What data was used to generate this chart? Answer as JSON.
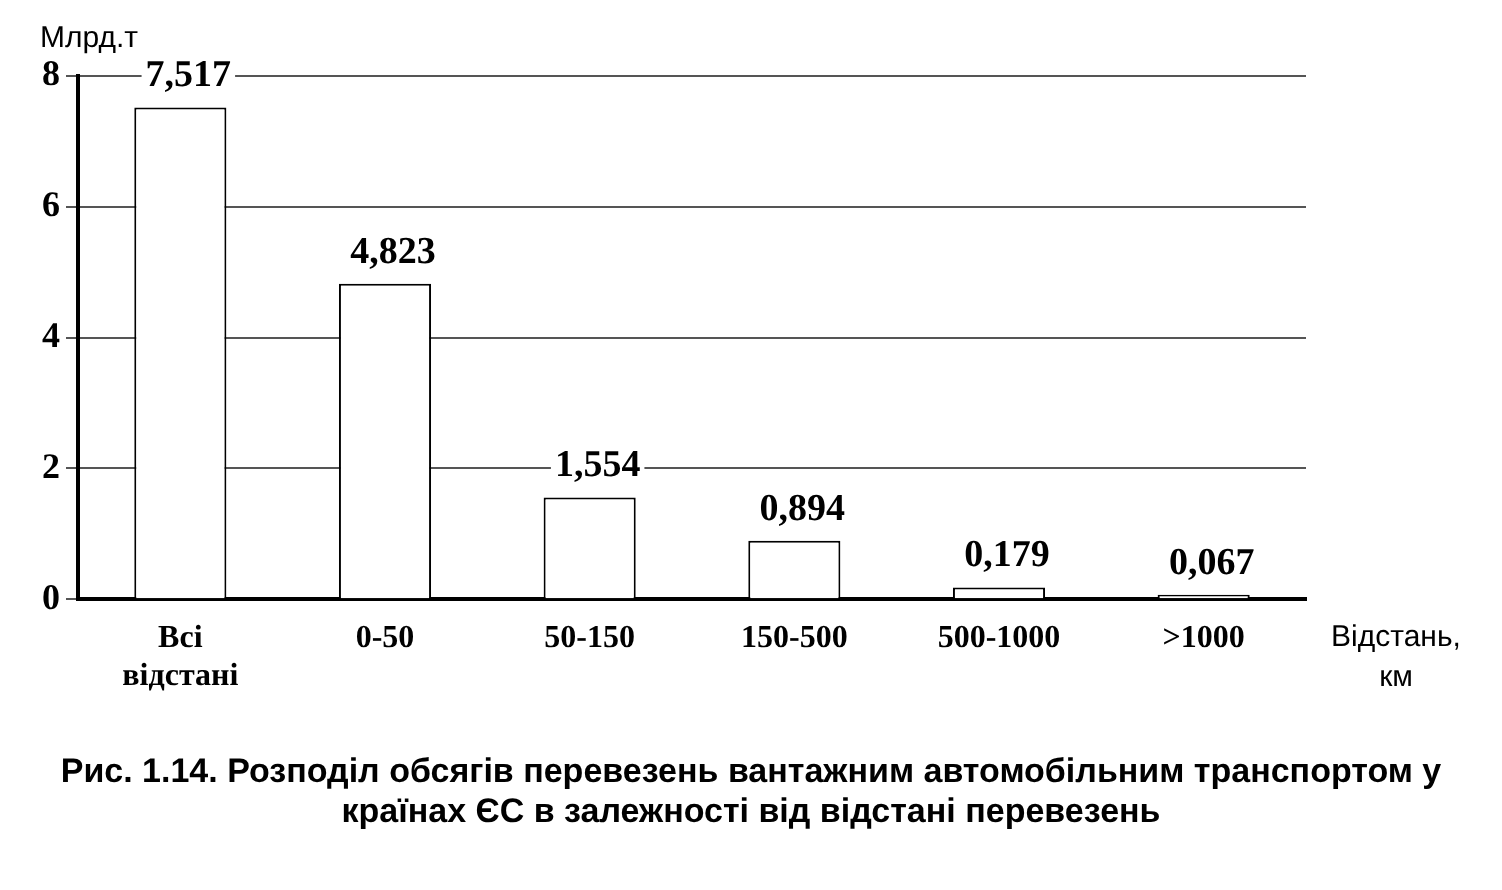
{
  "chart_data": {
    "type": "bar",
    "title": "Рис. 1.14. Розподіл обсягів перевезень вантажним автомобільним транспортом у країнах ЄС в залежності від відстані перевезень",
    "ylabel": "Млрд.т",
    "xlabel": "Відстань, км",
    "categories": [
      "Всі відстані",
      "0-50",
      "50-150",
      "150-500",
      "500-1000",
      ">1000"
    ],
    "values": [
      7.517,
      4.823,
      1.554,
      0.894,
      0.179,
      0.067
    ],
    "value_labels": [
      "7,517",
      "4,823",
      "1,554",
      "0,894",
      "0,179",
      "0,067"
    ],
    "color": "#ffffff",
    "ylim": [
      0,
      8
    ],
    "yticks": [
      0,
      2,
      4,
      6,
      8
    ],
    "grid": "y"
  }
}
